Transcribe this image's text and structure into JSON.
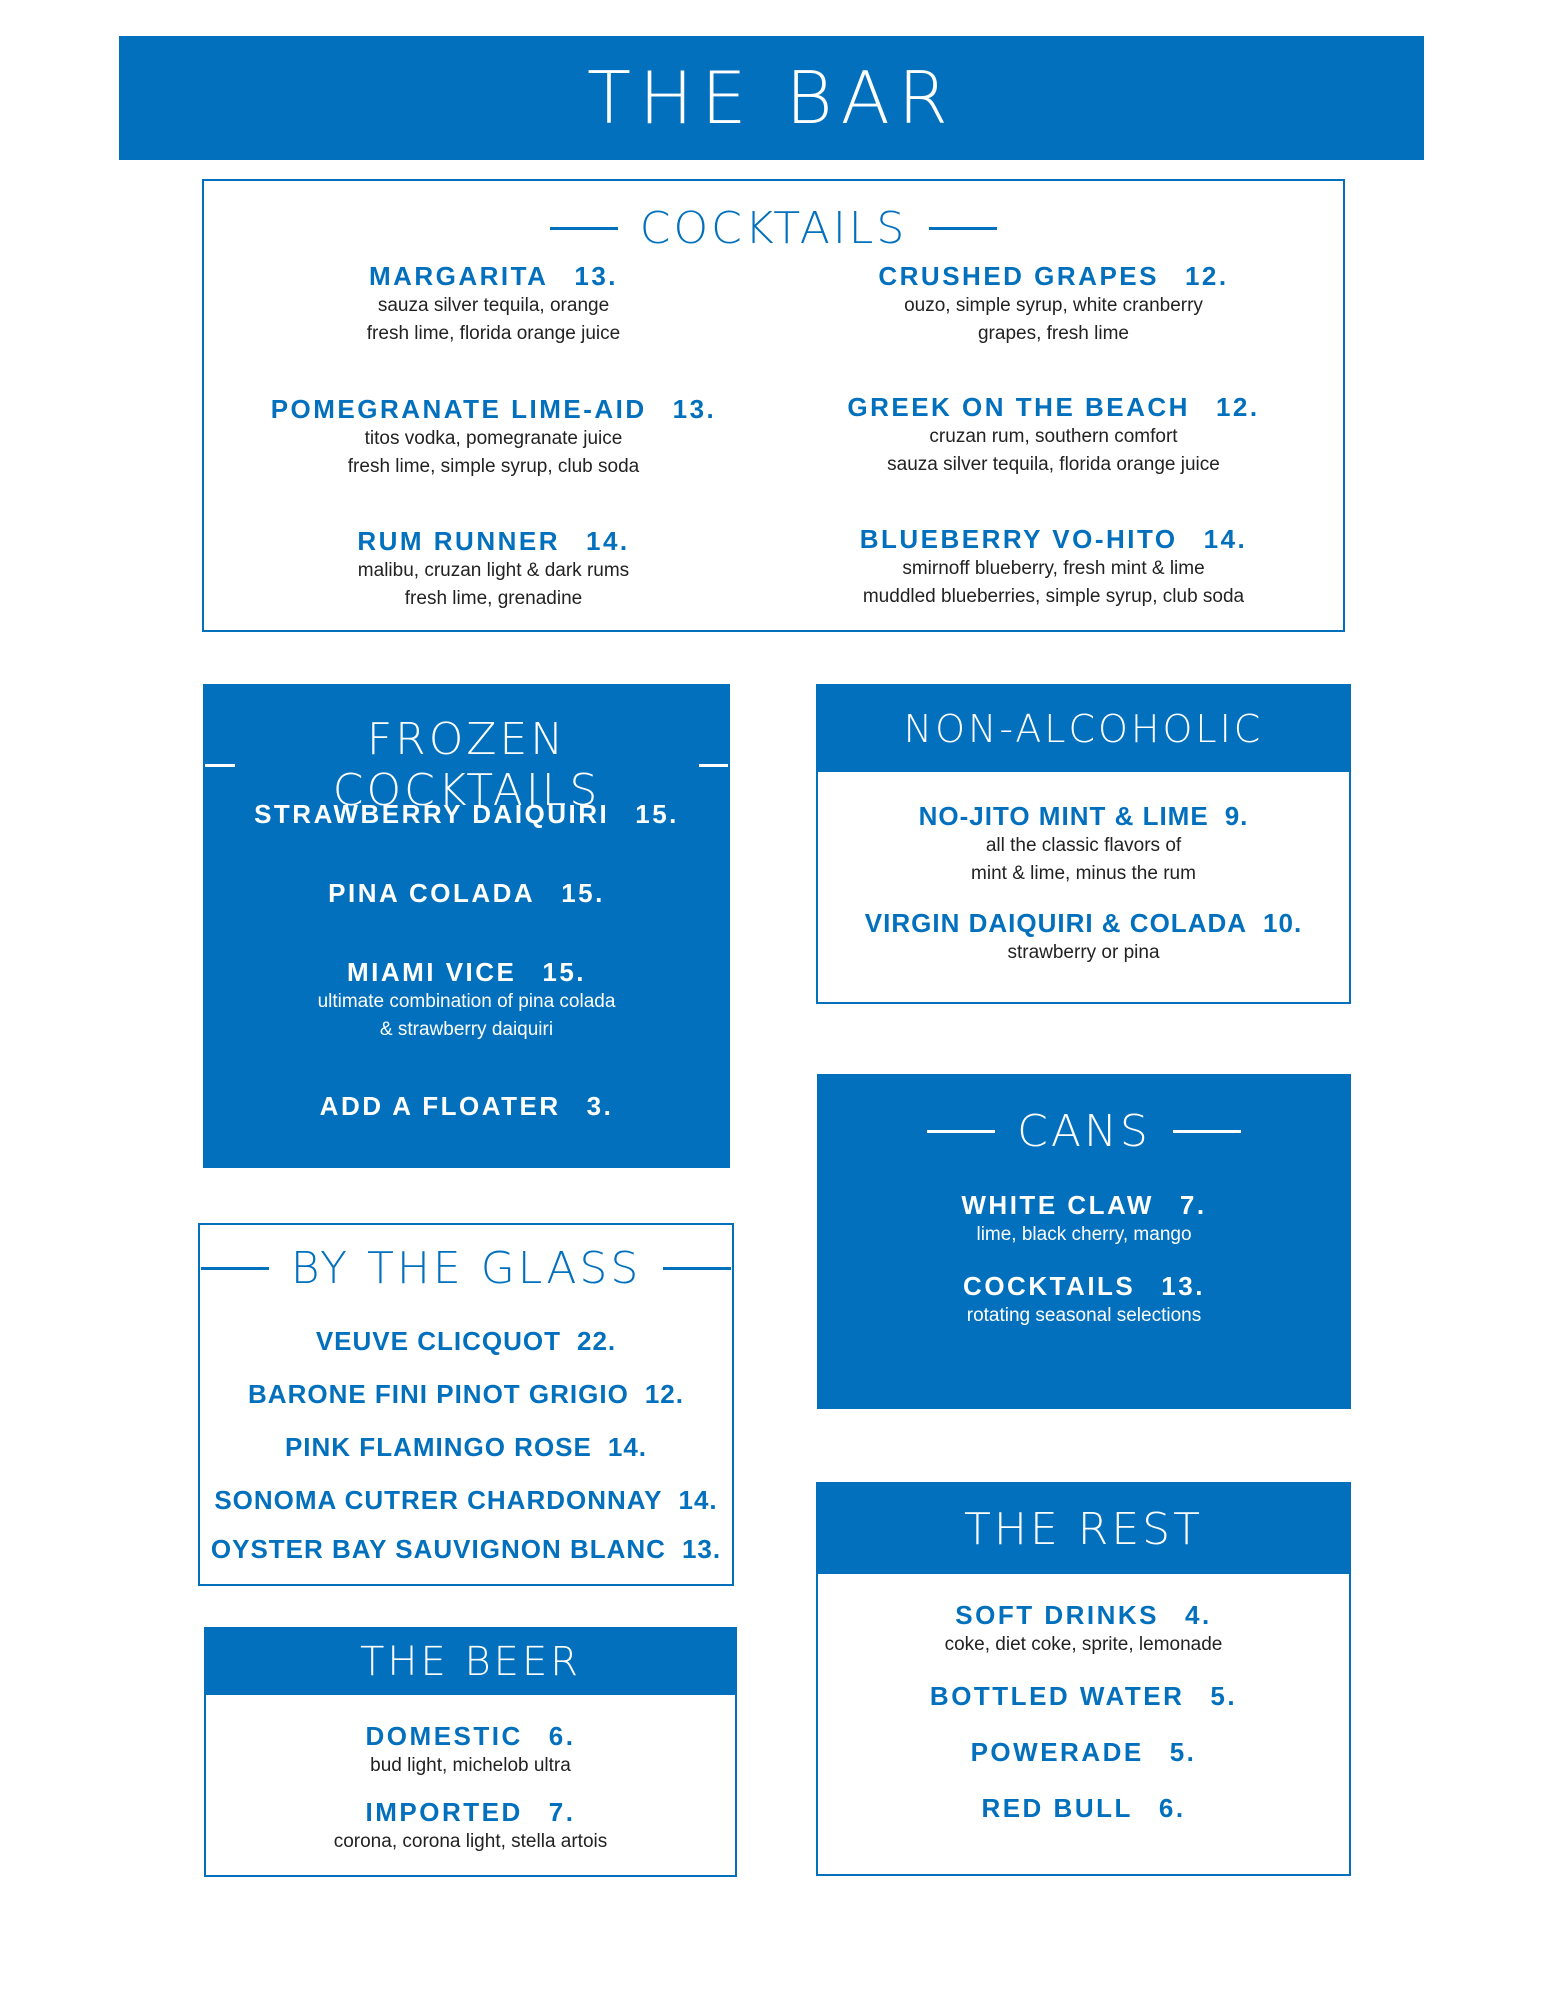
{
  "header": {
    "title": "THE BAR"
  },
  "cocktails": {
    "title": "COCKTAILS",
    "items": [
      {
        "name": "MARGARITA",
        "price": "13.",
        "desc": [
          "sauza silver tequila, orange",
          "fresh lime, florida orange juice"
        ]
      },
      {
        "name": "CRUSHED GRAPES",
        "price": "12.",
        "desc": [
          "ouzo, simple syrup, white cranberry",
          "grapes, fresh lime"
        ]
      },
      {
        "name": "POMEGRANATE LIME-AID",
        "price": "13.",
        "desc": [
          "titos vodka, pomegranate juice",
          "fresh lime, simple syrup, club soda"
        ]
      },
      {
        "name": "GREEK ON THE BEACH",
        "price": "12.",
        "desc": [
          "cruzan rum, southern comfort",
          "sauza silver tequila, florida orange juice"
        ]
      },
      {
        "name": "RUM RUNNER",
        "price": "14.",
        "desc": [
          "malibu, cruzan light & dark rums",
          "fresh lime, grenadine"
        ]
      },
      {
        "name": "BLUEBERRY VO-HITO",
        "price": "14.",
        "desc": [
          "smirnoff blueberry, fresh mint & lime",
          "muddled blueberries, simple syrup, club soda"
        ]
      }
    ]
  },
  "frozen": {
    "title": "FROZEN COCKTAILS",
    "items": [
      {
        "name": "STRAWBERRY DAIQUIRI",
        "price": "15."
      },
      {
        "name": "PINA COLADA",
        "price": "15."
      },
      {
        "name": "MIAMI VICE",
        "price": "15.",
        "desc": [
          "ultimate combination of pina colada",
          "& strawberry daiquiri"
        ]
      },
      {
        "name": "ADD A FLOATER",
        "price": "3."
      }
    ]
  },
  "non_alcoholic": {
    "title": "NON-ALCOHOLIC",
    "items": [
      {
        "name": "NO-JITO MINT & LIME",
        "price": "9.",
        "desc": [
          "all the classic flavors of",
          "mint & lime, minus the rum"
        ]
      },
      {
        "name": "VIRGIN DAIQUIRI & COLADA",
        "price": "10.",
        "desc": [
          "strawberry or pina"
        ]
      }
    ]
  },
  "cans": {
    "title": "CANS",
    "items": [
      {
        "name": "WHITE CLAW",
        "price": "7.",
        "desc": [
          "lime, black cherry, mango"
        ]
      },
      {
        "name": "COCKTAILS",
        "price": "13.",
        "desc": [
          "rotating seasonal selections"
        ]
      }
    ]
  },
  "by_the_glass": {
    "title": "BY THE GLASS",
    "items": [
      {
        "name": "VEUVE CLICQUOT",
        "price": "22."
      },
      {
        "name": "BARONE FINI PINOT GRIGIO",
        "price": "12."
      },
      {
        "name": "PINK FLAMINGO ROSE",
        "price": "14."
      },
      {
        "name": "SONOMA CUTRER CHARDONNAY",
        "price": "14."
      },
      {
        "name": "OYSTER BAY SAUVIGNON BLANC",
        "price": "13."
      }
    ]
  },
  "beer": {
    "title": "THE BEER",
    "items": [
      {
        "name": "DOMESTIC",
        "price": "6.",
        "desc": [
          "bud light, michelob ultra"
        ]
      },
      {
        "name": "IMPORTED",
        "price": "7.",
        "desc": [
          "corona, corona light, stella artois"
        ]
      }
    ]
  },
  "rest": {
    "title": "THE REST",
    "items": [
      {
        "name": "SOFT DRINKS",
        "price": "4.",
        "desc": [
          "coke, diet coke, sprite, lemonade"
        ]
      },
      {
        "name": "BOTTLED WATER",
        "price": "5."
      },
      {
        "name": "POWERADE",
        "price": "5."
      },
      {
        "name": "RED BULL",
        "price": "6."
      }
    ]
  }
}
